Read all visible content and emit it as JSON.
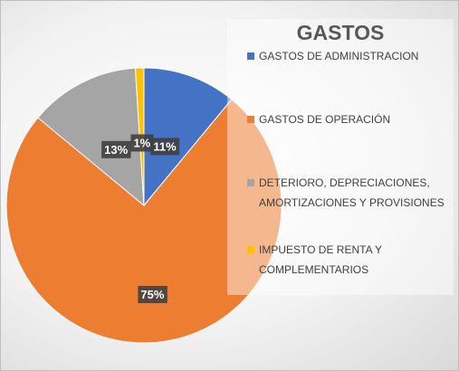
{
  "chart_data": {
    "type": "pie",
    "title": "GASTOS",
    "categories": [
      "GASTOS DE ADMINISTRACION",
      "GASTOS DE OPERACIÓN",
      "DETERIORO, DEPRECIACIONES, AMORTIZACIONES Y PROVISIONES",
      "IMPUESTO DE RENTA Y COMPLEMENTARIOS"
    ],
    "values": [
      11,
      75,
      13,
      1
    ],
    "value_labels": [
      "11%",
      "75%",
      "13%",
      "1%"
    ],
    "colors": [
      "#4472c4",
      "#ed7d31",
      "#a5a5a5",
      "#ffc000"
    ],
    "legend": "right"
  }
}
